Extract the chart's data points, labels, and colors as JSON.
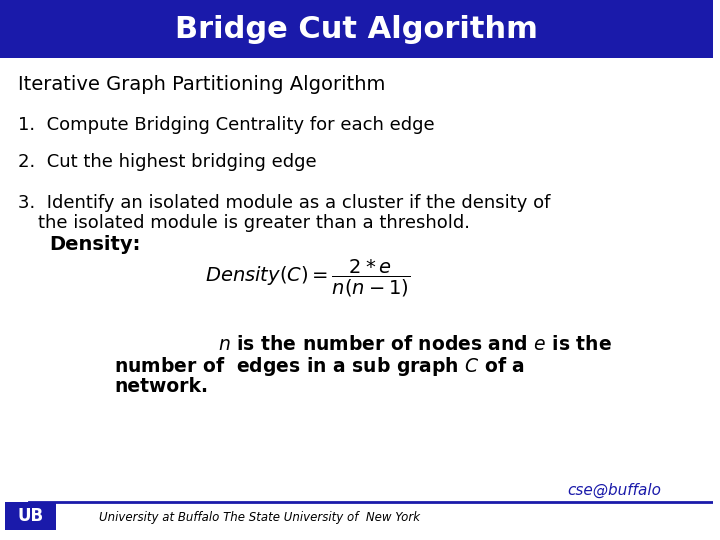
{
  "title": "Bridge Cut Algorithm",
  "title_bg_color": "#1a1aaa",
  "title_text_color": "#ffffff",
  "bg_color": "#ffffff",
  "body_text_color": "#000000",
  "subtitle": "Iterative Graph Partitioning Algorithm",
  "items": [
    "1.  Compute Bridging Centrality for each edge",
    "2.  Cut the highest bridging edge",
    "3.  Identify an isolated module as a cluster if the density of\n     the isolated module is greater than a threshold."
  ],
  "density_label": "Density:",
  "formula": "Density(C) = \\dfrac{2*e}{n(n-1)}",
  "bottom_text_line1": "    n is the number of nodes and  e  is the",
  "bottom_text_line2": "number of  edges in a sub graph  C of a",
  "bottom_text_line3": "network.",
  "footer_text": "University at Buffalo The State University of  New York",
  "cse_text": "cse@buffalo",
  "footer_line_color": "#1a1aaa",
  "footer_bg_color": "#ffffff",
  "ub_logo_color": "#1a1aaa"
}
